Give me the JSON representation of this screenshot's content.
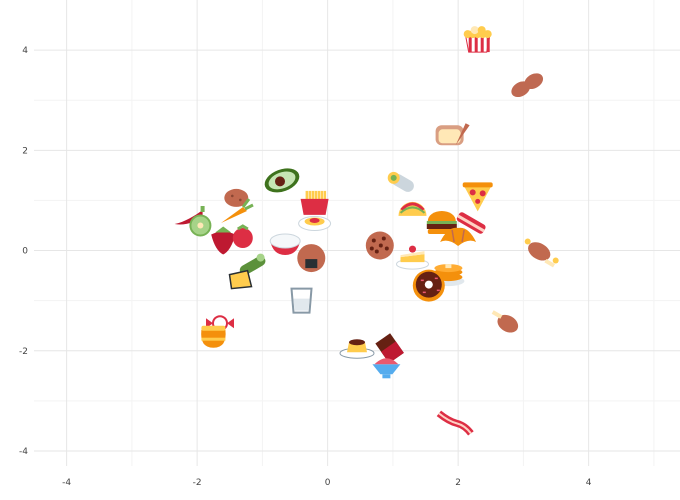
{
  "chart_data": {
    "type": "scatter",
    "title": "",
    "xlabel": "",
    "ylabel": "",
    "xlim": [
      -4.5,
      5.4
    ],
    "ylim": [
      -4.3,
      5.0
    ],
    "xticks": [
      -4,
      -2,
      0,
      2,
      4
    ],
    "yticks": [
      -4,
      -2,
      0,
      2,
      4
    ],
    "grid": true,
    "legend": "none",
    "points": [
      {
        "name": "popcorn",
        "x": 2.3,
        "y": 4.2
      },
      {
        "name": "peanuts",
        "x": 3.05,
        "y": 3.3
      },
      {
        "name": "bread",
        "x": 1.9,
        "y": 2.3
      },
      {
        "name": "burrito",
        "x": 1.15,
        "y": 1.35
      },
      {
        "name": "pizza",
        "x": 2.3,
        "y": 1.1
      },
      {
        "name": "avocado",
        "x": -0.7,
        "y": 1.4
      },
      {
        "name": "potato",
        "x": -1.4,
        "y": 1.05
      },
      {
        "name": "french-fries",
        "x": -0.2,
        "y": 0.95
      },
      {
        "name": "hot-pepper",
        "x": -2.1,
        "y": 0.65
      },
      {
        "name": "kiwi",
        "x": -1.95,
        "y": 0.5
      },
      {
        "name": "carrot",
        "x": -1.45,
        "y": 0.75
      },
      {
        "name": "taco",
        "x": 1.3,
        "y": 0.85
      },
      {
        "name": "spaghetti",
        "x": -0.2,
        "y": 0.6
      },
      {
        "name": "hamburger",
        "x": 1.75,
        "y": 0.55
      },
      {
        "name": "bacon",
        "x": 2.2,
        "y": 0.55
      },
      {
        "name": "strawberry",
        "x": -1.6,
        "y": 0.2
      },
      {
        "name": "tomato",
        "x": -1.3,
        "y": 0.25
      },
      {
        "name": "croissant",
        "x": 2.0,
        "y": 0.25
      },
      {
        "name": "rice-bowl",
        "x": -0.65,
        "y": 0.15
      },
      {
        "name": "cookie",
        "x": 0.8,
        "y": 0.1
      },
      {
        "name": "shortcake",
        "x": 1.3,
        "y": -0.15
      },
      {
        "name": "rice-ball",
        "x": -0.25,
        "y": -0.15
      },
      {
        "name": "meat-on-bone",
        "x": 3.25,
        "y": 0.0
      },
      {
        "name": "cucumber",
        "x": -1.15,
        "y": -0.3
      },
      {
        "name": "pancakes",
        "x": 1.85,
        "y": -0.45
      },
      {
        "name": "cheese",
        "x": -1.35,
        "y": -0.6
      },
      {
        "name": "doughnut",
        "x": 1.55,
        "y": -0.7
      },
      {
        "name": "glass-of-milk",
        "x": -0.4,
        "y": -1.0
      },
      {
        "name": "poultry-leg",
        "x": 2.7,
        "y": -1.4
      },
      {
        "name": "candy",
        "x": -1.65,
        "y": -1.45
      },
      {
        "name": "honey-pot",
        "x": -1.75,
        "y": -1.7
      },
      {
        "name": "custard",
        "x": 0.45,
        "y": -1.95
      },
      {
        "name": "chocolate-bar",
        "x": 0.95,
        "y": -1.95
      },
      {
        "name": "shaved-ice",
        "x": 0.9,
        "y": -2.35
      },
      {
        "name": "bacon-strip",
        "x": 1.95,
        "y": -3.45
      }
    ]
  }
}
